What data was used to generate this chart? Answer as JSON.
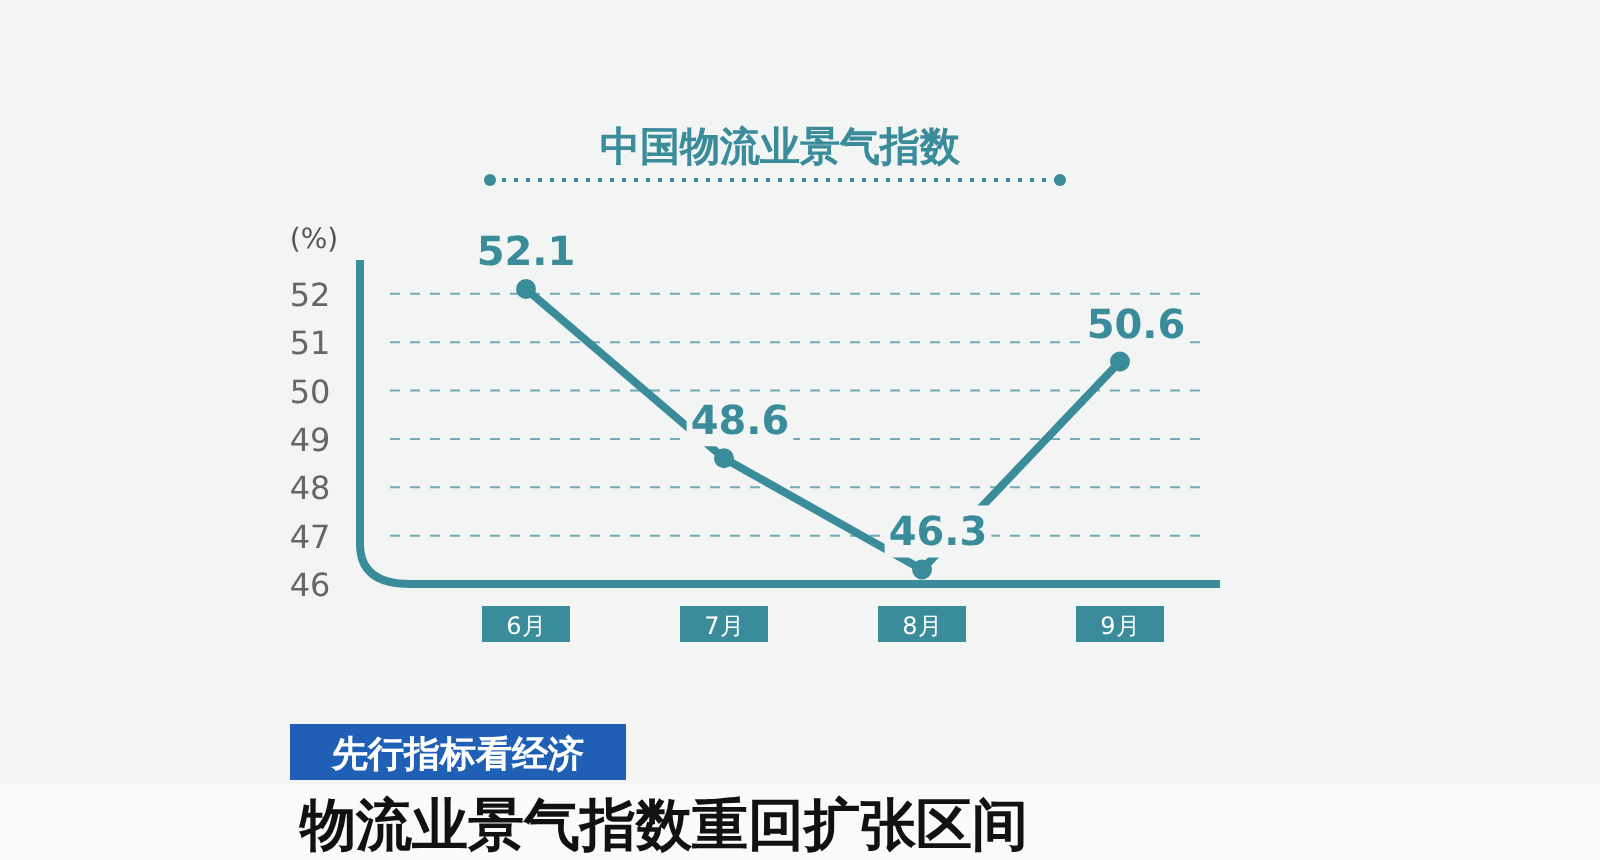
{
  "chart_data": {
    "type": "line",
    "title": "中国物流业景气指数",
    "ylabel": "(%)",
    "categories": [
      "6月",
      "7月",
      "8月",
      "9月"
    ],
    "series": [
      {
        "color": "#3b8c9b",
        "values": [
          52.1,
          48.6,
          46.3,
          50.6
        ]
      }
    ],
    "ylim": [
      46,
      52.7
    ],
    "yticks": [
      46,
      47,
      48,
      49,
      50,
      51,
      52
    ],
    "grid": "y",
    "marker": "circle",
    "line_style": "solid",
    "data_labels": true,
    "annotations": [
      "先行指标看经济",
      "物流业景气指数重回扩张区间"
    ]
  }
}
